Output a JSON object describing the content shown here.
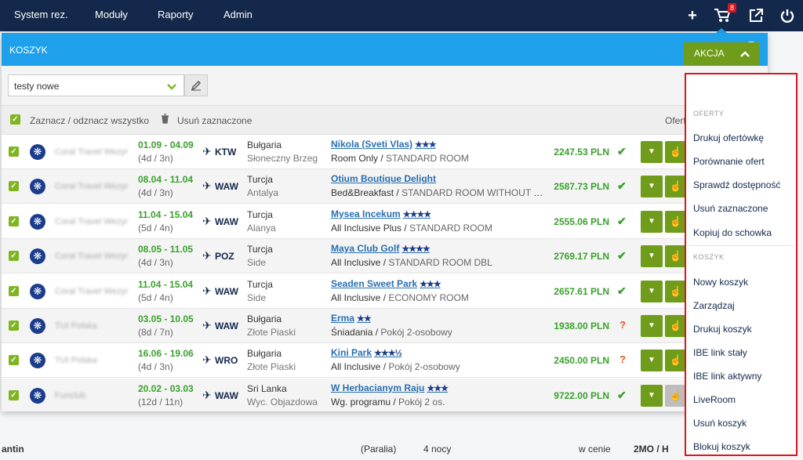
{
  "topnav": {
    "items": [
      "System rez.",
      "Moduły",
      "Raporty",
      "Admin"
    ],
    "cart_count": "8",
    "icons": [
      "plus-icon",
      "cart-icon",
      "external-link-icon",
      "power-icon"
    ]
  },
  "background": {
    "left_text": "antin",
    "col1": "(Paralia)",
    "col2": "4 nocy",
    "col3": "w cenie",
    "col4": "2MO / H"
  },
  "panel": {
    "title": "KOSZYK",
    "select_value": "testy nowe",
    "select_all_label": "Zaznacz / odznacz wszystko",
    "delete_selected_label": "Usuń zaznaczone",
    "right_label": "Oferty"
  },
  "akcja": {
    "label": "AKCJA"
  },
  "menu": {
    "sections": {
      "offers": "OFERTY",
      "cart": "KOSZYK"
    },
    "offer_items": [
      "Drukuj ofertówkę",
      "Porównanie ofert",
      "Sprawdź dostępność",
      "Usuń zaznaczone",
      "Kopiuj do schowka"
    ],
    "cart_items": [
      "Nowy koszyk",
      "Zarządzaj",
      "Drukuj koszyk",
      "IBE link stały",
      "IBE link aktywny",
      "LiveRoom",
      "Usuń koszyk",
      "Blokuj koszyk"
    ]
  },
  "offers": [
    {
      "operator": "Coral Travel Wezyr",
      "dates": "01.09 - 04.09",
      "nights": "(4d / 3n)",
      "airport": "KTW",
      "country": "Bułgaria",
      "region": "Słoneczny Brzeg",
      "hotel": "Nikola (Sveti Vlas)",
      "stars": "★★★",
      "board": "Room Only",
      "room": "STANDARD ROOM",
      "price": "2247.53 PLN",
      "status": "ok"
    },
    {
      "operator": "Coral Travel Wezyr",
      "dates": "08.04 - 11.04",
      "nights": "(4d / 3n)",
      "airport": "WAW",
      "country": "Turcja",
      "region": "Antalya",
      "hotel": "Otium Boutique Delight",
      "stars": "",
      "board": "Bed&Breakfast",
      "room": "STANDARD ROOM WITHOUT BALCONY",
      "price": "2587.73 PLN",
      "status": "ok"
    },
    {
      "operator": "Coral Travel Wezyr",
      "dates": "11.04 - 15.04",
      "nights": "(5d / 4n)",
      "airport": "WAW",
      "country": "Turcja",
      "region": "Alanya",
      "hotel": "Mysea Incekum",
      "stars": "★★★★",
      "board": "All Inclusive Plus",
      "room": "STANDARD ROOM",
      "price": "2555.06 PLN",
      "status": "ok"
    },
    {
      "operator": "Coral Travel Wezyr",
      "dates": "08.05 - 11.05",
      "nights": "(4d / 3n)",
      "airport": "POZ",
      "country": "Turcja",
      "region": "Side",
      "hotel": "Maya Club Golf",
      "stars": "★★★★",
      "board": "All Inclusive",
      "room": "STANDARD ROOM DBL",
      "price": "2769.17 PLN",
      "status": "ok"
    },
    {
      "operator": "Coral Travel Wezyr",
      "dates": "11.04 - 15.04",
      "nights": "(5d / 4n)",
      "airport": "WAW",
      "country": "Turcja",
      "region": "Side",
      "hotel": "Seaden Sweet Park",
      "stars": "★★★",
      "board": "All Inclusive",
      "room": "ECONOMY ROOM",
      "price": "2657.61 PLN",
      "status": "ok"
    },
    {
      "operator": "TUI Polska",
      "dates": "03.05 - 10.05",
      "nights": "(8d / 7n)",
      "airport": "WAW",
      "country": "Bułgaria",
      "region": "Złote Piaski",
      "hotel": "Erma",
      "stars": "★★",
      "board": "Śniadania",
      "room": "Pokój 2-osobowy",
      "price": "1938.00 PLN",
      "status": "q"
    },
    {
      "operator": "TUI Polska",
      "dates": "16.06 - 19.06",
      "nights": "(4d / 3n)",
      "airport": "WRO",
      "country": "Bułgaria",
      "region": "Złote Piaski",
      "hotel": "Kini Park",
      "stars": "★★★½",
      "board": "All Inclusive",
      "room": "Pokój 2-osobowy",
      "price": "2450.00 PLN",
      "status": "q"
    },
    {
      "operator": "Funclub",
      "dates": "20.02 - 03.03",
      "nights": "(12d / 11n)",
      "airport": "WAW",
      "country": "Sri Lanka",
      "region": "Wyc. Objazdowa",
      "hotel": "W Herbacianym Raju",
      "stars": "★★★",
      "board": "Wg. programu",
      "room": "Pokój 2 os.",
      "price": "9722.00 PLN",
      "status": "ok"
    }
  ]
}
